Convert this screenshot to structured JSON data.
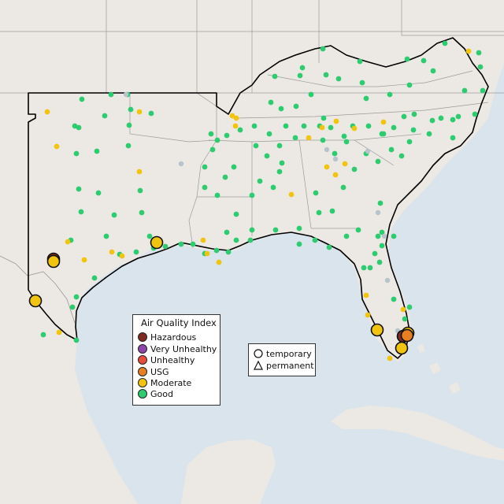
{
  "legend": {
    "title": "Air Quality Index",
    "categories": [
      {
        "label": "Hazardous",
        "color": "#7e2a22"
      },
      {
        "label": "Very Unhealthy",
        "color": "#8e44ad"
      },
      {
        "label": "Unhealthy",
        "color": "#e74c3c"
      },
      {
        "label": "USG",
        "color": "#e67e22"
      },
      {
        "label": "Moderate",
        "color": "#f1c40f"
      },
      {
        "label": "Good",
        "color": "#2ecc71"
      }
    ]
  },
  "site_legend": {
    "temporary": "temporary",
    "permanent": "permanent"
  },
  "colors": {
    "water": "#d9e4ec",
    "land": "#ece9e4",
    "outline": "#000000",
    "border": "#9a9a9a",
    "no_data": "#b8c4cc"
  }
}
